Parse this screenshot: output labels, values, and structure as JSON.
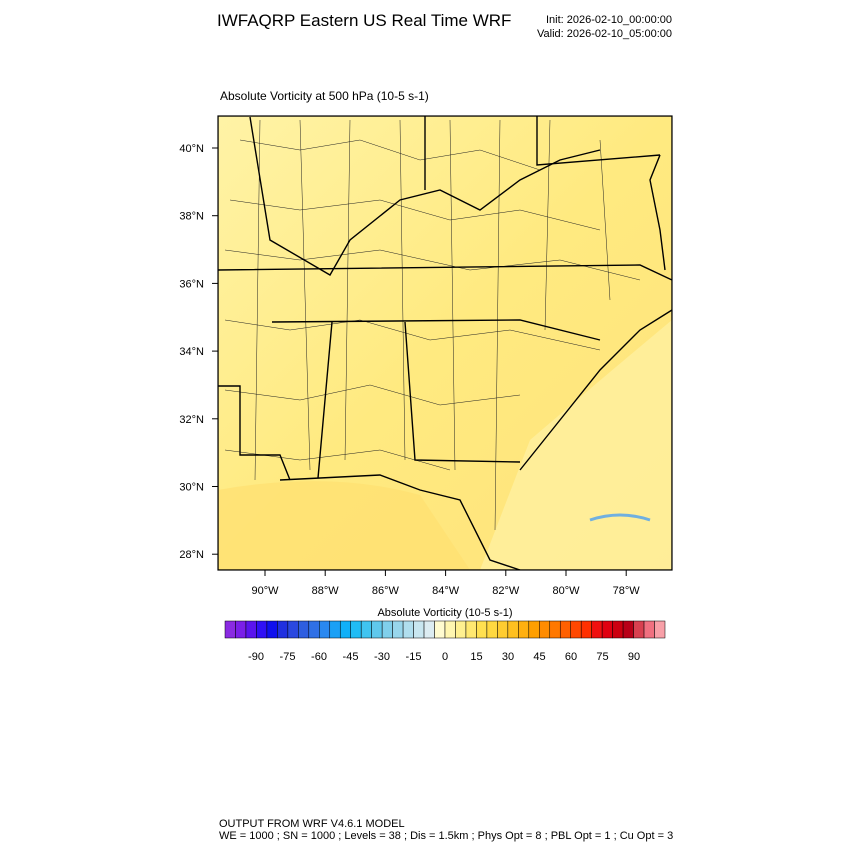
{
  "header": {
    "title": "IWFAQRP Eastern US Real Time WRF",
    "init": "Init: 2026-02-10_00:00:00",
    "valid": "Valid: 2026-02-10_05:00:00"
  },
  "map": {
    "subtitle": "Absolute Vorticity at 500 hPa   (10-5 s-1)",
    "lat_labels": [
      "40°N",
      "38°N",
      "36°N",
      "34°N",
      "32°N",
      "30°N",
      "28°N"
    ],
    "lon_labels": [
      "90°W",
      "88°W",
      "86°W",
      "84°W",
      "82°W",
      "80°W",
      "78°W"
    ]
  },
  "colorbar": {
    "title": "Absolute Vorticity  (10-5 s-1)",
    "labels": [
      -90,
      -75,
      -60,
      -45,
      -30,
      -15,
      0,
      15,
      30,
      45,
      60,
      75,
      90
    ],
    "colors": [
      "#8a2be2",
      "#7a1fe8",
      "#5a14ee",
      "#3010f5",
      "#1010ee",
      "#2030e0",
      "#2a48e0",
      "#2e5ee0",
      "#2f70e6",
      "#2a88f0",
      "#1aa0f5",
      "#10b0f8",
      "#20bcf5",
      "#40c4f0",
      "#60c8ec",
      "#80cfeb",
      "#98d6ec",
      "#b0deee",
      "#c8e6f0",
      "#dcecf2",
      "#fffbd0",
      "#fff6b0",
      "#fff090",
      "#ffe870",
      "#ffe050",
      "#ffd840",
      "#ffcc30",
      "#ffc020",
      "#ffb010",
      "#ff9f00",
      "#ff8c00",
      "#ff7800",
      "#ff6000",
      "#ff4800",
      "#ff3000",
      "#f01010",
      "#e00010",
      "#cc0010",
      "#b80018",
      "#d84050",
      "#f07080",
      "#f8a0a8"
    ]
  },
  "footer": {
    "line1": "OUTPUT FROM WRF V4.6.1 MODEL",
    "line2": "WE = 1000 ; SN = 1000 ; Levels = 38 ; Dis = 1.5km ; Phys Opt = 8 ; PBL Opt = 1 ; Cu Opt = 3"
  }
}
